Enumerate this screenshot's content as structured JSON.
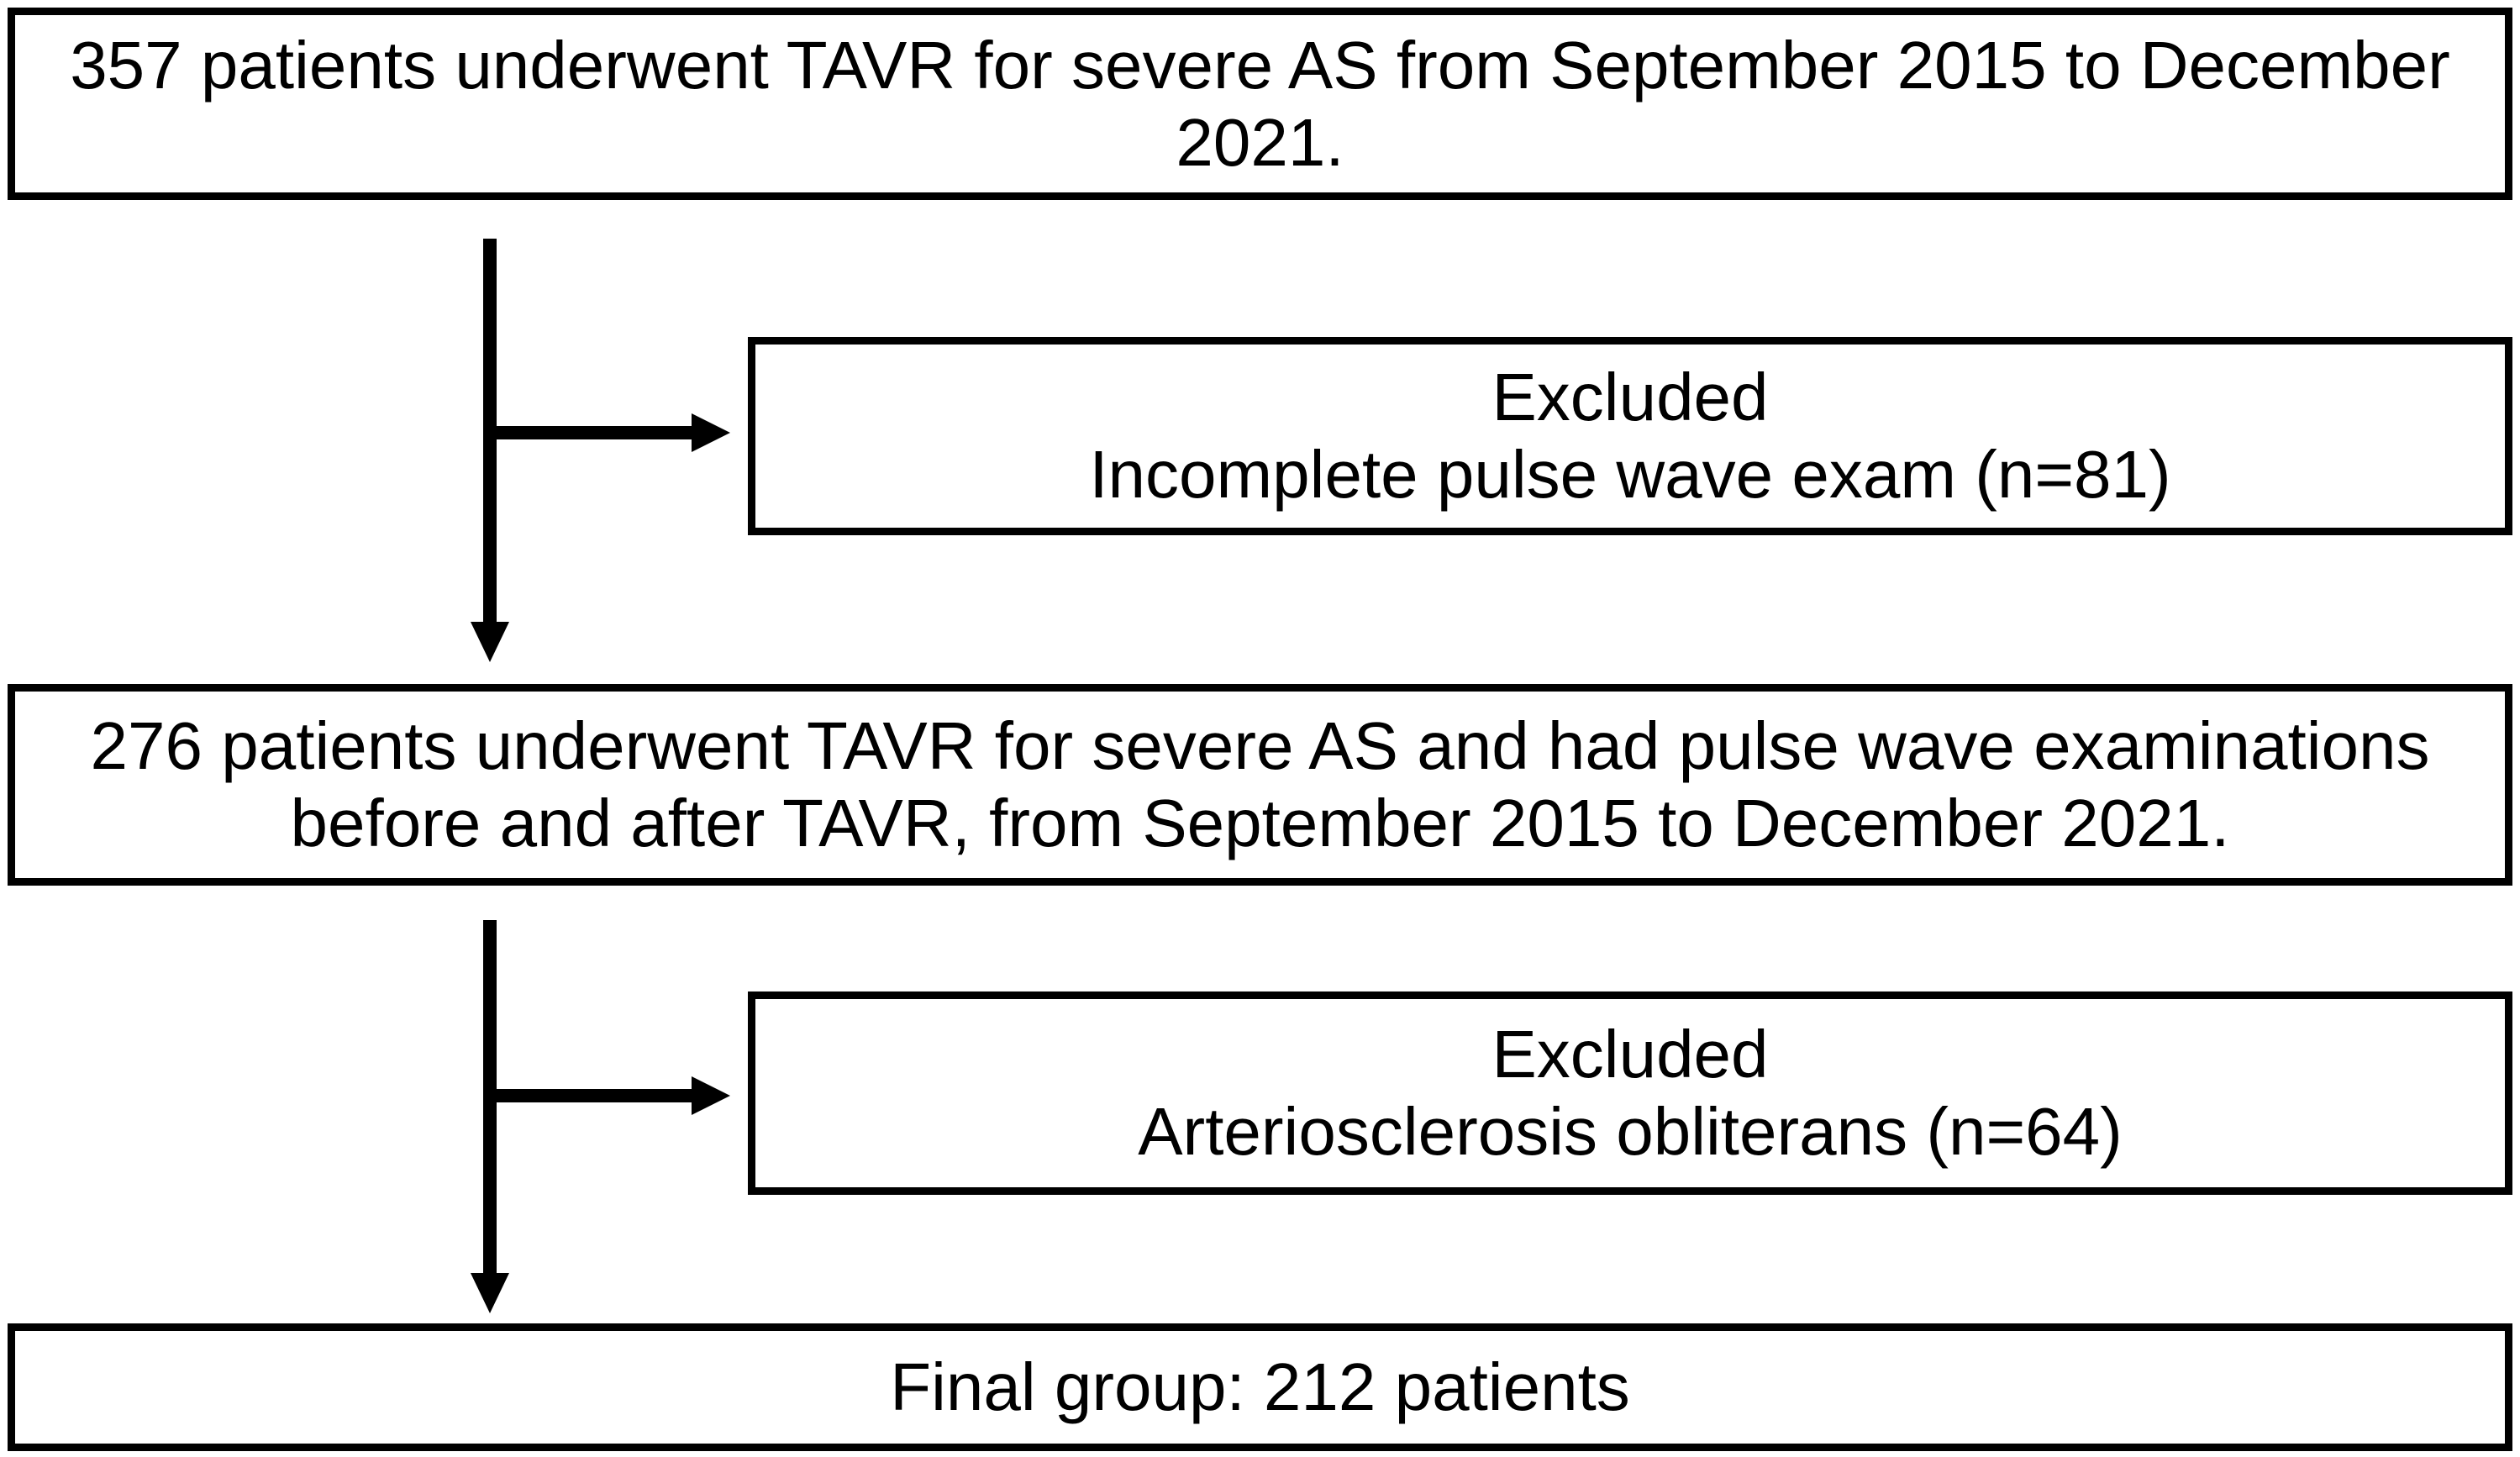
{
  "diagram": {
    "type": "patient-flow-chart",
    "colors": {
      "background": "#ffffff",
      "border": "#000000",
      "text": "#000000",
      "arrow": "#000000"
    },
    "boxes": {
      "enrollment": {
        "lines": [
          "357 patients underwent TAVR for severe AS from September 2015 to December",
          "2021."
        ]
      },
      "excluded1": {
        "lines": [
          "Excluded",
          "Incomplete pulse wave exam (n=81)"
        ]
      },
      "cohort": {
        "lines": [
          "276 patients underwent TAVR for severe AS and had pulse wave examinations",
          "before and after TAVR, from September 2015 to December 2021."
        ]
      },
      "excluded2": {
        "lines": [
          "Excluded",
          "Arteriosclerosis obliterans (n=64)"
        ]
      },
      "final": {
        "lines": [
          "Final group: 212 patients"
        ]
      }
    }
  }
}
